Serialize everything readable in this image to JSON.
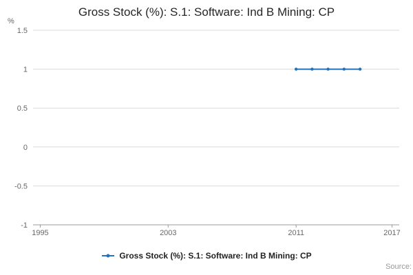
{
  "title": "Gross Stock (%): S.1: Software: Ind B Mining: CP",
  "source": "Source:",
  "legend": {
    "label": "Gross Stock (%): S.1: Software: Ind B Mining: CP"
  },
  "colors": {
    "line": "#2073bc",
    "grid": "#d9d9d9",
    "axis": "#999999",
    "tick_text": "#666666"
  },
  "chart_data": {
    "type": "line",
    "title": "Gross Stock (%): S.1: Software: Ind B Mining: CP",
    "xlabel": "",
    "ylabel": "%",
    "series": [
      {
        "name": "Gross Stock (%): S.1: Software: Ind B Mining: CP",
        "x": [
          2011,
          2012,
          2013,
          2014,
          2015
        ],
        "values": [
          1,
          1,
          1,
          1,
          1
        ]
      }
    ],
    "xticks": [
      1995,
      2003,
      2011,
      2017
    ],
    "yticks": [
      1.5,
      1,
      0.5,
      0,
      -0.5,
      -1
    ],
    "xlim": [
      1994.55,
      2017.45
    ],
    "ylim": [
      -1,
      1.5
    ],
    "grid": "horizontal",
    "legend_position": "bottom",
    "markers": true
  }
}
